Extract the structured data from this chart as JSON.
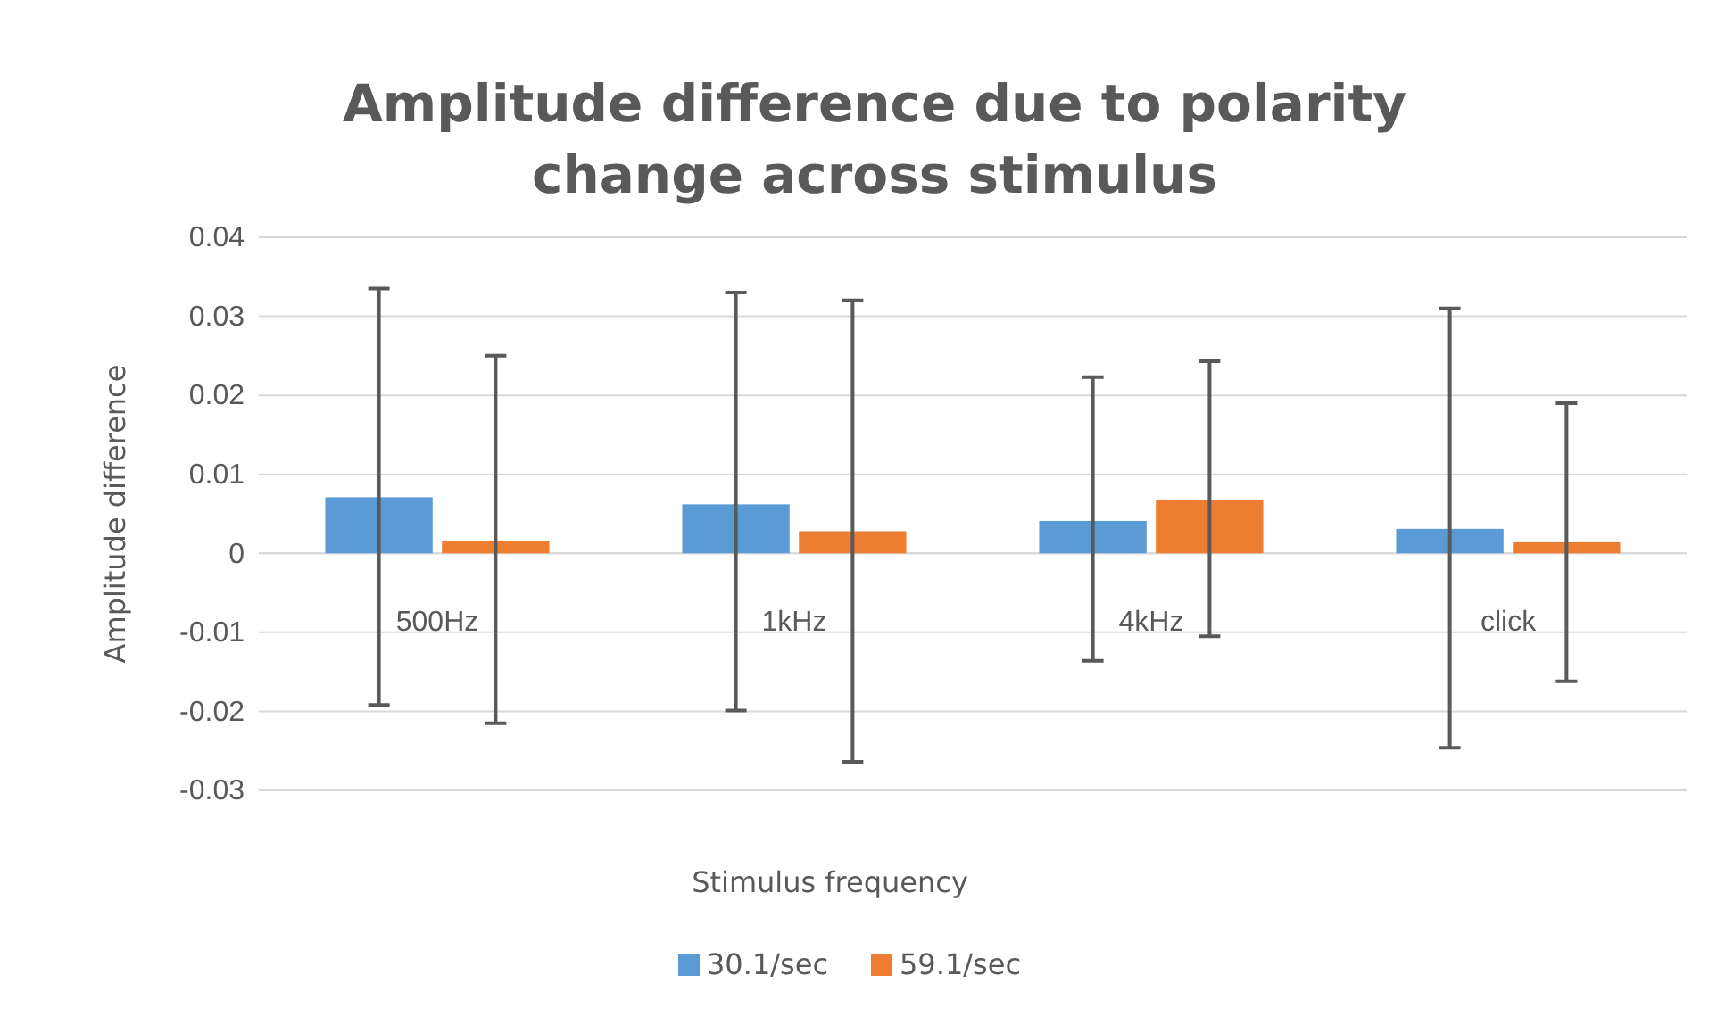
{
  "chart_data": {
    "type": "bar",
    "title": "Amplitude difference due to polarity change across stimulus",
    "xlabel": "Stimulus frequency",
    "ylabel": "Amplitude difference",
    "categories": [
      "500Hz",
      "1kHz",
      "4kHz",
      "click"
    ],
    "series": [
      {
        "name": "30.1/sec",
        "color": "#5b9bd5",
        "values": [
          0.0071,
          0.0062,
          0.0041,
          0.0031
        ],
        "errors": [
          [
            -0.0192,
            0.0335
          ],
          [
            -0.0199,
            0.033
          ],
          [
            -0.0136,
            0.0223
          ],
          [
            -0.0246,
            0.031
          ]
        ]
      },
      {
        "name": "59.1/sec",
        "color": "#ed7d31",
        "values": [
          0.0016,
          0.0028,
          0.0068,
          0.0014
        ],
        "errors": [
          [
            -0.0215,
            0.025
          ],
          [
            -0.0264,
            0.032
          ],
          [
            -0.0105,
            0.0243
          ],
          [
            -0.0162,
            0.019
          ]
        ]
      }
    ],
    "ylim": [
      -0.03,
      0.04
    ],
    "yticks": [
      -0.03,
      -0.02,
      -0.01,
      0,
      0.01,
      0.02,
      0.03,
      0.04
    ],
    "grid": "y",
    "legend": "bottom"
  }
}
